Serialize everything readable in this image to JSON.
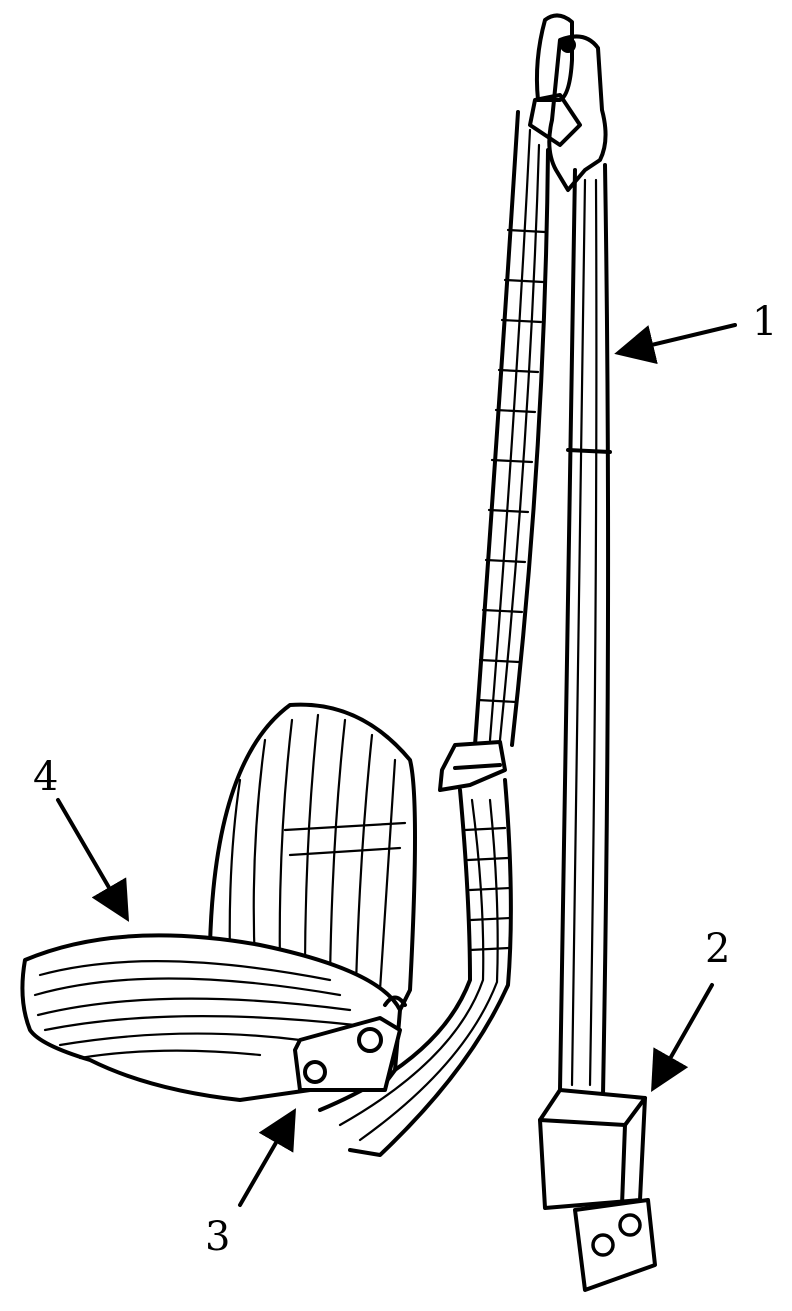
{
  "callouts": {
    "c1": "1",
    "c2": "2",
    "c3": "3",
    "c4": "4"
  },
  "colors": {
    "ink": "#000000",
    "paper": "#ffffff"
  }
}
